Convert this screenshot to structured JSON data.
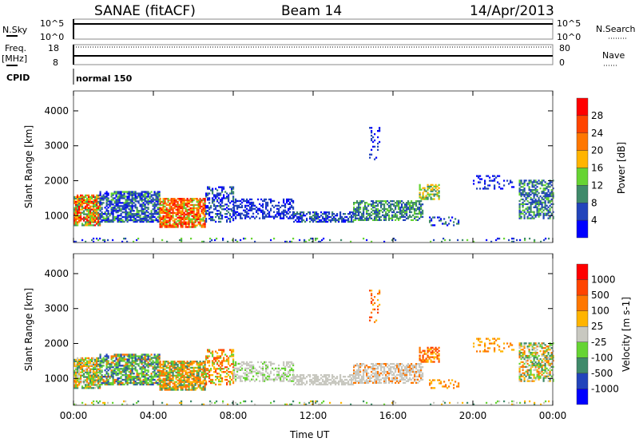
{
  "header": {
    "station": "SANAE (fitACF)",
    "beam": "Beam 14",
    "date": "14/Apr/2013"
  },
  "sky_panel": {
    "left_label": "N.Sky",
    "right_label": "N.Search",
    "left_ticks": [
      "10^5",
      "10^0"
    ],
    "right_ticks": [
      "10^5",
      "10^0"
    ]
  },
  "freq_panel": {
    "left_label_1": "Freq.",
    "left_label_2": "[MHz]",
    "right_label": "Nave",
    "left_ticks": [
      "18",
      "8"
    ],
    "right_ticks": [
      "80",
      "0"
    ]
  },
  "cpid": {
    "label": "CPID",
    "value": "normal 150"
  },
  "xaxis": {
    "label": "Time UT",
    "ticks": [
      "00:00",
      "04:00",
      "08:00",
      "12:00",
      "16:00",
      "20:00",
      "00:00"
    ]
  },
  "chart_data": [
    {
      "type": "heatmap",
      "title": "Power",
      "ylabel": "Slant Range [km]",
      "xlabel": "Time UT",
      "xlim_hours": [
        0,
        24
      ],
      "ylim": [
        230,
        4570
      ],
      "yticks": [
        "1000",
        "2000",
        "3000",
        "4000"
      ],
      "colorbar": {
        "label": "Power [dB]",
        "ticks": [
          "28",
          "24",
          "20",
          "16",
          "12",
          "8",
          "4"
        ],
        "range": [
          0,
          32
        ],
        "colors": [
          "#0000ff",
          "#2244bb",
          "#3f8a6a",
          "#66d433",
          "#ffb400",
          "#ff7700",
          "#ff4400",
          "#ff0000"
        ]
      }
    },
    {
      "type": "heatmap",
      "title": "Velocity",
      "ylabel": "Slant Range [km]",
      "xlabel": "Time UT",
      "xlim_hours": [
        0,
        24
      ],
      "ylim": [
        230,
        4570
      ],
      "yticks": [
        "1000",
        "2000",
        "3000",
        "4000"
      ],
      "colorbar": {
        "label": "Velocity [m s-1]",
        "ticks": [
          "1000",
          "500",
          "100",
          "25",
          "-25",
          "-100",
          "-500",
          "-1000"
        ],
        "colors": [
          "#0000ff",
          "#2244bb",
          "#3f8a6a",
          "#66d433",
          "#c8c8c0",
          "#ffb400",
          "#ff7700",
          "#ff4400",
          "#ff0000"
        ]
      }
    }
  ],
  "scatter_regions": [
    {
      "t0": 0.0,
      "t1": 1.3,
      "r0": 700,
      "r1": 1600,
      "density": 0.8,
      "power": [
        2,
        3,
        4,
        5,
        6,
        7
      ],
      "vel": [
        2,
        3,
        5,
        6,
        4
      ]
    },
    {
      "t0": 1.3,
      "t1": 4.3,
      "r0": 800,
      "r1": 1700,
      "density": 0.7,
      "power": [
        0,
        1,
        1,
        2,
        3
      ],
      "vel": [
        1,
        2,
        3,
        3,
        6
      ]
    },
    {
      "t0": 4.3,
      "t1": 6.6,
      "r0": 650,
      "r1": 1500,
      "density": 0.8,
      "power": [
        3,
        4,
        5,
        6,
        6,
        7
      ],
      "vel": [
        5,
        6,
        3,
        2,
        6
      ]
    },
    {
      "t0": 6.6,
      "t1": 8.0,
      "r0": 800,
      "r1": 1800,
      "density": 0.45,
      "power": [
        0,
        1,
        2
      ],
      "vel": [
        6,
        7,
        5,
        3
      ]
    },
    {
      "t0": 8.0,
      "t1": 11.0,
      "r0": 900,
      "r1": 1450,
      "density": 0.45,
      "power": [
        0,
        1,
        1
      ],
      "vel": [
        4,
        4,
        4,
        3
      ]
    },
    {
      "t0": 11.0,
      "t1": 14.0,
      "r0": 800,
      "r1": 1100,
      "density": 0.6,
      "power": [
        0,
        1,
        1,
        2
      ],
      "vel": [
        4
      ]
    },
    {
      "t0": 14.0,
      "t1": 17.5,
      "r0": 850,
      "r1": 1400,
      "density": 0.6,
      "power": [
        1,
        2,
        2,
        3
      ],
      "vel": [
        4,
        4,
        4,
        6
      ]
    },
    {
      "t0": 17.3,
      "t1": 18.3,
      "r0": 1450,
      "r1": 1900,
      "density": 0.6,
      "power": [
        2,
        3,
        4
      ],
      "vel": [
        5,
        6,
        7
      ]
    },
    {
      "t0": 17.8,
      "t1": 19.3,
      "r0": 700,
      "r1": 950,
      "density": 0.3,
      "power": [
        0,
        1,
        2
      ],
      "vel": [
        5,
        6
      ]
    },
    {
      "t0": 20.0,
      "t1": 22.0,
      "r0": 1750,
      "r1": 2150,
      "density": 0.2,
      "power": [
        0,
        1
      ],
      "vel": [
        5,
        6
      ]
    },
    {
      "t0": 22.3,
      "t1": 24.0,
      "r0": 900,
      "r1": 2000,
      "density": 0.55,
      "power": [
        1,
        2,
        3,
        1
      ],
      "vel": [
        2,
        3,
        5,
        6,
        4
      ]
    },
    {
      "t0": 14.8,
      "t1": 15.3,
      "r0": 2500,
      "r1": 3500,
      "density": 0.15,
      "power": [
        0,
        1
      ],
      "vel": [
        5,
        6,
        7
      ]
    },
    {
      "t0": 0.0,
      "t1": 24.0,
      "r0": 230,
      "r1": 330,
      "density": 0.12,
      "power": [
        0,
        1,
        2,
        3
      ],
      "vel": [
        3,
        4,
        5,
        2
      ]
    }
  ]
}
